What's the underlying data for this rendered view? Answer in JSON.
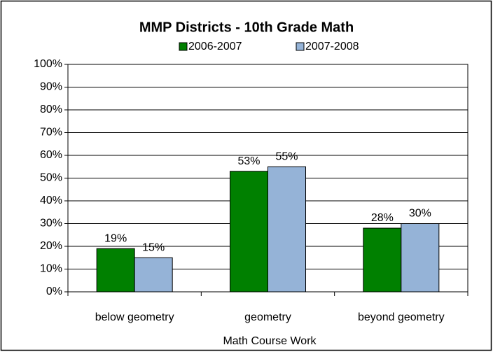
{
  "chart_data": {
    "type": "bar",
    "title": "MMP Districts - 10th Grade Math",
    "x_label": "Math Course Work",
    "categories": [
      "below geometry",
      "geometry",
      "beyond geometry"
    ],
    "series": [
      {
        "name": "2006-2007",
        "color": "#008000",
        "values": [
          19,
          53,
          28
        ],
        "value_labels": [
          "19%",
          "53%",
          "28%"
        ]
      },
      {
        "name": "2007-2008",
        "color": "#95b3d7",
        "values": [
          15,
          55,
          30
        ],
        "value_labels": [
          "15%",
          "55%",
          "30%"
        ]
      }
    ],
    "ylim": [
      0,
      100
    ],
    "yticks": [
      {
        "value": 0,
        "label": "0%"
      },
      {
        "value": 10,
        "label": "10%"
      },
      {
        "value": 20,
        "label": "20%"
      },
      {
        "value": 30,
        "label": "30%"
      },
      {
        "value": 40,
        "label": "40%"
      },
      {
        "value": 50,
        "label": "50%"
      },
      {
        "value": 60,
        "label": "60%"
      },
      {
        "value": 70,
        "label": "70%"
      },
      {
        "value": 80,
        "label": "80%"
      },
      {
        "value": 90,
        "label": "90%"
      },
      {
        "value": 100,
        "label": "100%"
      }
    ],
    "grid": true,
    "legend": "top"
  }
}
